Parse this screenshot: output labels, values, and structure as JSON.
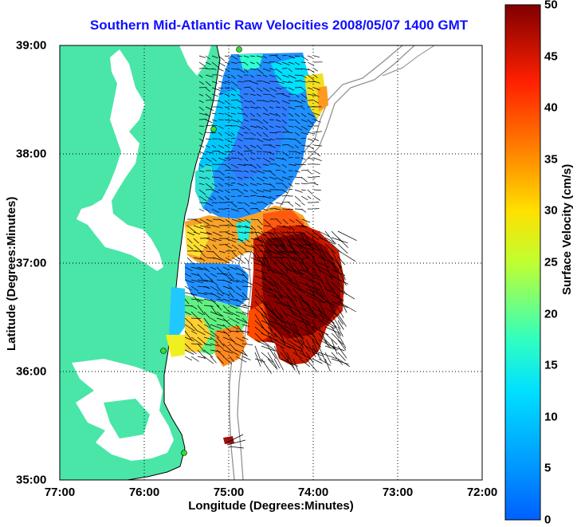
{
  "title": "Southern Mid-Atlantic Raw Velocities 2008/05/07 1400 GMT",
  "xlabel": "Longitude (Degrees:Minutes)",
  "ylabel": "Latitude (Degrees:Minutes)",
  "colorbar": {
    "label": "Surface Velocity (cm/s)",
    "min": 0,
    "max": 50,
    "ticks": [
      "0",
      "5",
      "10",
      "15",
      "20",
      "25",
      "30",
      "35",
      "40",
      "45",
      "50"
    ]
  },
  "map": {
    "lon_range": [
      -77,
      -72
    ],
    "lat_range": [
      35,
      39
    ],
    "x_ticks": [
      "77:00",
      "76:00",
      "75:00",
      "74:00",
      "73:00",
      "72:00"
    ],
    "y_ticks": [
      "39:00",
      "38:00",
      "37:00",
      "36:00",
      "35:00"
    ],
    "grid": true,
    "land_color": "#49e6a8",
    "water_color": "#ffffff",
    "title_color": "#1010ff"
  }
}
